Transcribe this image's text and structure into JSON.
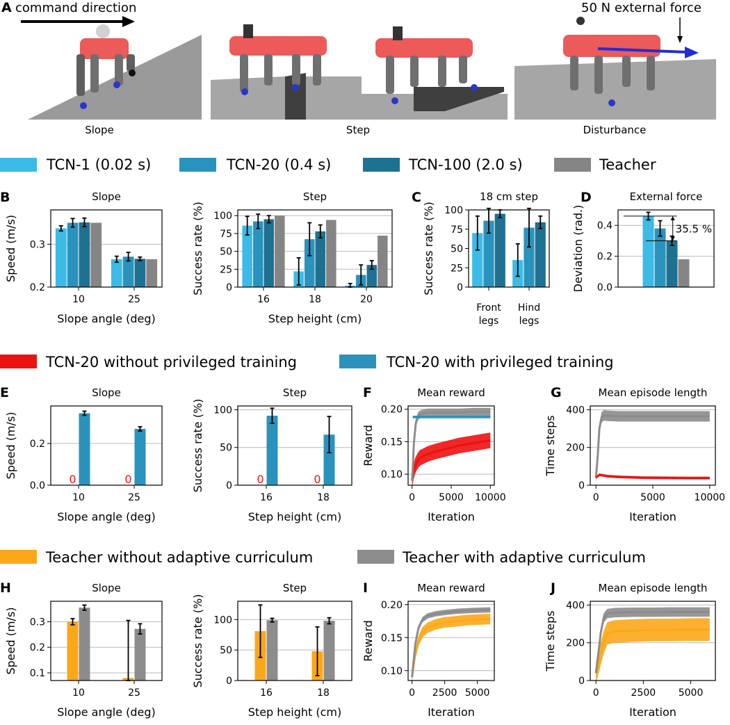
{
  "colors": {
    "tcn1": "#3cbbe6",
    "tcn20": "#2a93bd",
    "tcn100": "#1f7191",
    "teacher": "#858585",
    "red": "#ee1111",
    "orange": "#fba818",
    "grey": "#8c8c8c",
    "robot_body": "#ec5a5a",
    "robot_leg": "#6f6f6f",
    "foot": "#2b36c9",
    "ground": "#9a9a9a",
    "force_arrow": "#1f2ed3"
  },
  "icons": [
    "robot-icon",
    "command-arrow-icon",
    "force-arrow-icon"
  ],
  "photos": {
    "panel_letter": "A",
    "command_text": "command direction",
    "force_text": "50 N external force",
    "captions": [
      "Slope",
      "Step",
      "Disturbance"
    ]
  },
  "legends": {
    "tcn": [
      "TCN-1 (0.02 s)",
      "TCN-20 (0.4 s)",
      "TCN-100 (2.0 s)",
      "Teacher"
    ],
    "priv": [
      "TCN-20 without privileged training",
      "TCN-20 with privileged training"
    ],
    "curr": [
      "Teacher without adaptive curriculum",
      "Teacher with adaptive curriculum"
    ]
  },
  "chart_data": [
    {
      "id": "B_slope",
      "panel_letter": "B",
      "type": "bar",
      "title": "Slope",
      "xlabel": "Slope angle (deg)",
      "ylabel": "Speed (m/s)",
      "categories": [
        "10",
        "25"
      ],
      "ylim": [
        0.2,
        0.38
      ],
      "yticks": [
        "0.2",
        "0.3"
      ],
      "grid": "y",
      "series": [
        {
          "name": "TCN-1 (0.02 s)",
          "values": [
            0.337,
            0.265
          ],
          "err": [
            0.006,
            0.007
          ]
        },
        {
          "name": "TCN-20 (0.4 s)",
          "values": [
            0.35,
            0.271
          ],
          "err": [
            0.01,
            0.01
          ]
        },
        {
          "name": "TCN-100 (2.0 s)",
          "values": [
            0.351,
            0.266
          ],
          "err": [
            0.01,
            0.004
          ]
        },
        {
          "name": "Teacher",
          "values": [
            0.35,
            0.265
          ]
        }
      ]
    },
    {
      "id": "B_step",
      "panel_letter": "",
      "type": "bar",
      "title": "Step",
      "xlabel": "Step height (cm)",
      "ylabel": "Success rate (%)",
      "categories": [
        "16",
        "18",
        "20"
      ],
      "ylim": [
        0,
        108
      ],
      "yticks": [
        "0",
        "25",
        "50",
        "75",
        "100"
      ],
      "grid": "y",
      "series": [
        {
          "name": "TCN-1 (0.02 s)",
          "values": [
            86,
            22,
            2
          ],
          "err": [
            13,
            19,
            3
          ]
        },
        {
          "name": "TCN-20 (0.4 s)",
          "values": [
            92,
            67,
            17
          ],
          "err": [
            10,
            23,
            14
          ]
        },
        {
          "name": "TCN-100 (2.0 s)",
          "values": [
            95,
            78,
            31
          ],
          "err": [
            5,
            9,
            6
          ]
        },
        {
          "name": "Teacher",
          "values": [
            100,
            94,
            72
          ]
        }
      ]
    },
    {
      "id": "C",
      "panel_letter": "C",
      "type": "bar",
      "title": "18 cm step",
      "xlabel": "",
      "ylabel": "Success rate (%)",
      "categories": [
        "Front legs",
        "Hind legs"
      ],
      "ylim": [
        0,
        100
      ],
      "yticks": [
        "0",
        "25",
        "50",
        "75",
        "100"
      ],
      "grid": "none",
      "series": [
        {
          "name": "TCN-1 (0.02 s)",
          "values": [
            70,
            35
          ],
          "err": [
            22,
            21
          ]
        },
        {
          "name": "TCN-20 (0.4 s)",
          "values": [
            86,
            77
          ],
          "err": [
            16,
            25
          ]
        },
        {
          "name": "TCN-100 (2.0 s)",
          "values": [
            95,
            84
          ],
          "err": [
            5,
            8
          ]
        }
      ]
    },
    {
      "id": "D",
      "panel_letter": "D",
      "type": "bar",
      "title": "External force",
      "xlabel": "",
      "ylabel": "Deviation (rad.)",
      "categories": [
        ""
      ],
      "ylim": [
        0,
        0.5
      ],
      "yticks": [
        "0.0",
        "0.2",
        "0.4"
      ],
      "grid": "y",
      "annotation": "35.5 %",
      "series": [
        {
          "name": "TCN-1 (0.02 s)",
          "values": [
            0.46
          ],
          "err": [
            0.025
          ]
        },
        {
          "name": "TCN-20 (0.4 s)",
          "values": [
            0.38
          ],
          "err": [
            0.05
          ]
        },
        {
          "name": "TCN-100 (2.0 s)",
          "values": [
            0.3
          ],
          "err": [
            0.03
          ]
        },
        {
          "name": "Teacher",
          "values": [
            0.18
          ]
        }
      ]
    },
    {
      "id": "E_slope",
      "panel_letter": "E",
      "type": "bar",
      "title": "Slope",
      "xlabel": "Slope angle (deg)",
      "ylabel": "Speed (m/s)",
      "categories": [
        "10",
        "25"
      ],
      "ylim": [
        0,
        0.38
      ],
      "yticks": [
        "0.0",
        "0.2"
      ],
      "grid": "y",
      "zero_label": "0",
      "series": [
        {
          "name": "TCN-20 without privileged training",
          "values": [
            0,
            0
          ]
        },
        {
          "name": "TCN-20 with privileged training",
          "values": [
            0.345,
            0.27
          ],
          "err": [
            0.01,
            0.01
          ]
        }
      ]
    },
    {
      "id": "E_step",
      "panel_letter": "",
      "type": "bar",
      "title": "Step",
      "xlabel": "Step height (cm)",
      "ylabel": "Success rate (%)",
      "categories": [
        "16",
        "18"
      ],
      "ylim": [
        0,
        105
      ],
      "yticks": [
        "0",
        "50",
        "100"
      ],
      "grid": "y",
      "zero_label": "0",
      "series": [
        {
          "name": "TCN-20 without privileged training",
          "values": [
            0,
            0
          ]
        },
        {
          "name": "TCN-20 with privileged training",
          "values": [
            92,
            67
          ],
          "err": [
            10,
            24
          ]
        }
      ]
    },
    {
      "id": "F",
      "panel_letter": "F",
      "type": "line",
      "title": "Mean reward",
      "xlabel": "Iteration",
      "ylabel": "Reward",
      "xlim": [
        -500,
        10500
      ],
      "ylim": [
        0.083,
        0.205
      ],
      "xticks": [
        "0",
        "5000",
        "10000"
      ],
      "yticks": [
        "0.10",
        "0.15",
        "0.20"
      ],
      "grid": "y",
      "series": [
        {
          "name": "TCN-20 without privileged training",
          "color": "red",
          "band": 0.012,
          "x": [
            0,
            100,
            200,
            400,
            700,
            1000,
            1500,
            2000,
            3000,
            4000,
            5000,
            6000,
            7000,
            8000,
            9000,
            10000
          ],
          "y": [
            0.09,
            0.097,
            0.104,
            0.113,
            0.12,
            0.125,
            0.128,
            0.131,
            0.135,
            0.138,
            0.141,
            0.144,
            0.146,
            0.148,
            0.15,
            0.152
          ]
        },
        {
          "name": "Teacher",
          "color": "grey",
          "band": 0.006,
          "x": [
            0,
            100,
            250,
            500,
            800,
            1200,
            2000,
            4000,
            6000,
            8000,
            10000
          ],
          "y": [
            0.09,
            0.11,
            0.15,
            0.18,
            0.19,
            0.193,
            0.195,
            0.195,
            0.195,
            0.196,
            0.196
          ]
        },
        {
          "name": "TCN-20 with privileged training",
          "color": "blue",
          "band": 0.002,
          "x": [
            100,
            10000
          ],
          "y": [
            0.188,
            0.188
          ]
        }
      ]
    },
    {
      "id": "G",
      "panel_letter": "G",
      "type": "line",
      "title": "Mean episode length",
      "xlabel": "Iteration",
      "ylabel": "Time steps",
      "xlim": [
        -500,
        10500
      ],
      "ylim": [
        0,
        420
      ],
      "xticks": [
        "0",
        "5000",
        "10000"
      ],
      "yticks": [
        "0",
        "200",
        "400"
      ],
      "grid": "y",
      "series": [
        {
          "name": "Teacher",
          "color": "grey",
          "band": 28,
          "x": [
            0,
            150,
            300,
            500,
            700,
            1000,
            2000,
            4000,
            6000,
            8000,
            10000
          ],
          "y": [
            40,
            150,
            300,
            360,
            370,
            368,
            365,
            365,
            365,
            365,
            365
          ]
        },
        {
          "name": "TCN-20 without privileged training",
          "color": "red",
          "band": 7,
          "x": [
            0,
            300,
            600,
            1000,
            2000,
            4000,
            6000,
            8000,
            10000
          ],
          "y": [
            40,
            55,
            52,
            48,
            44,
            40,
            39,
            38,
            38
          ]
        }
      ]
    },
    {
      "id": "H_slope",
      "panel_letter": "H",
      "type": "bar",
      "title": "Slope",
      "xlabel": "Slope angle (deg)",
      "ylabel": "Speed (m/s)",
      "categories": [
        "10",
        "25"
      ],
      "ylim": [
        0.07,
        0.38
      ],
      "yticks": [
        "0.1",
        "0.2",
        "0.3"
      ],
      "grid": "y",
      "series": [
        {
          "name": "Teacher without adaptive curriculum",
          "values": [
            0.3,
            0.08
          ],
          "err": [
            0.012,
            0.225
          ]
        },
        {
          "name": "Teacher with adaptive curriculum",
          "values": [
            0.355,
            0.272
          ],
          "err": [
            0.01,
            0.02
          ]
        }
      ]
    },
    {
      "id": "H_step",
      "panel_letter": "",
      "type": "bar",
      "title": "Step",
      "xlabel": "Step height (cm)",
      "ylabel": "Success rate (%)",
      "categories": [
        "16",
        "18"
      ],
      "ylim": [
        0,
        130
      ],
      "yticks": [
        "0",
        "50",
        "100"
      ],
      "grid": "y",
      "series": [
        {
          "name": "Teacher without adaptive curriculum",
          "values": [
            81,
            48
          ],
          "err": [
            43,
            40
          ]
        },
        {
          "name": "Teacher with adaptive curriculum",
          "values": [
            99,
            98
          ],
          "err": [
            3,
            5
          ]
        }
      ]
    },
    {
      "id": "I",
      "panel_letter": "I",
      "type": "line",
      "title": "Mean reward",
      "xlabel": "Iteration",
      "ylabel": "Reward",
      "xlim": [
        -300,
        6300
      ],
      "ylim": [
        0.085,
        0.205
      ],
      "xticks": [
        "0",
        "2500",
        "5000"
      ],
      "yticks": [
        "0.10",
        "0.15",
        "0.20"
      ],
      "grid": "y",
      "series": [
        {
          "name": "Teacher without adaptive curriculum",
          "color": "orange",
          "band": 0.008,
          "x": [
            0,
            100,
            250,
            500,
            800,
            1200,
            1800,
            2500,
            3500,
            4500,
            6000
          ],
          "y": [
            0.09,
            0.105,
            0.125,
            0.145,
            0.158,
            0.165,
            0.17,
            0.173,
            0.175,
            0.177,
            0.178
          ]
        },
        {
          "name": "Teacher with adaptive curriculum",
          "color": "grey",
          "band": 0.004,
          "x": [
            0,
            100,
            250,
            500,
            800,
            1200,
            1800,
            2500,
            3500,
            4500,
            6000
          ],
          "y": [
            0.09,
            0.11,
            0.14,
            0.165,
            0.177,
            0.183,
            0.186,
            0.188,
            0.19,
            0.191,
            0.192
          ]
        }
      ]
    },
    {
      "id": "J",
      "panel_letter": "J",
      "type": "line",
      "title": "Mean episode length",
      "xlabel": "Iteration",
      "ylabel": "Time steps",
      "xlim": [
        -300,
        6300
      ],
      "ylim": [
        0,
        420
      ],
      "xticks": [
        "0",
        "2500",
        "5000"
      ],
      "yticks": [
        "0",
        "200",
        "400"
      ],
      "grid": "y",
      "series": [
        {
          "name": "Teacher without adaptive curriculum",
          "color": "orange",
          "band": 60,
          "x": [
            0,
            100,
            250,
            400,
            600,
            1000,
            2000,
            3000,
            4000,
            5000,
            6000
          ],
          "y": [
            40,
            80,
            140,
            200,
            250,
            260,
            265,
            268,
            268,
            270,
            270
          ]
        },
        {
          "name": "Teacher with adaptive curriculum",
          "color": "grey",
          "band": 25,
          "x": [
            0,
            100,
            250,
            400,
            600,
            1000,
            2000,
            3000,
            4000,
            5000,
            6000
          ],
          "y": [
            40,
            120,
            250,
            330,
            355,
            360,
            362,
            362,
            363,
            363,
            363
          ]
        }
      ]
    }
  ]
}
